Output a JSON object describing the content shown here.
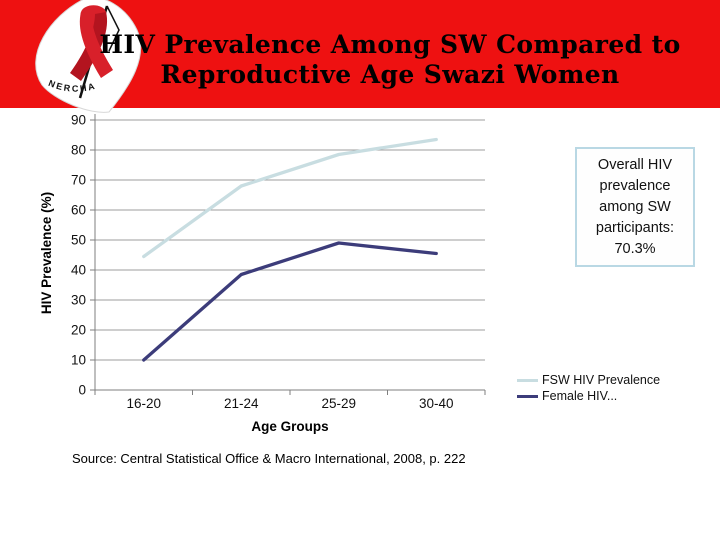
{
  "header": {
    "banner_color": "#ee1111",
    "title_line1": "HIV Prevalence Among SW Compared to",
    "title_line2": "Reproductive Age Swazi Women",
    "logo": {
      "text": "NERCHA",
      "icon": "aids-ribbon-icon",
      "ribbon_color": "#d8202a",
      "ribbon_shade_color": "#b3141f"
    }
  },
  "chart_data": {
    "type": "line",
    "title": "",
    "categories": [
      "16-20",
      "21-24",
      "25-29",
      "30-40"
    ],
    "series": [
      {
        "name": "FSW HIV Prevalence",
        "values": [
          44.5,
          68,
          78.5,
          83.5
        ],
        "color": "#c8dde1"
      },
      {
        "name": "Female HIV...",
        "values": [
          10,
          38.5,
          49,
          45.5
        ],
        "color": "#3c3c7a"
      }
    ],
    "xlabel": "Age Groups",
    "ylabel": "HIV Prevalence (%)",
    "ylim": [
      0,
      90
    ],
    "ytick_step": 10,
    "grid": true,
    "gridline_color": "#9c9c9c",
    "axis_color": "#7f7f7f",
    "legend_position": "bottom-right"
  },
  "annotation_box": {
    "text": "Overall HIV\nprevalence\namong SW\nparticipants:\n70.3%",
    "border_color": "#b9d8e4"
  },
  "source": "Source: Central Statistical Office & Macro International, 2008, p. 222"
}
